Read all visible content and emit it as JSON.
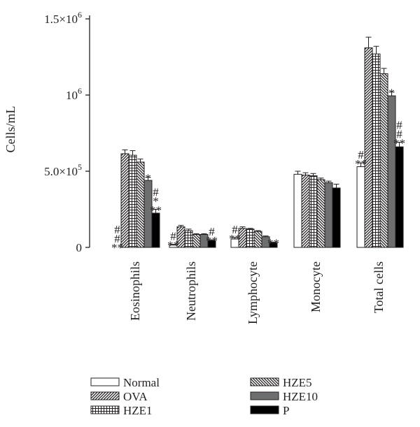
{
  "chart_data": {
    "type": "bar",
    "ylabel": "Cells/mL",
    "ylim": [
      0,
      1500000
    ],
    "categories": [
      "Eosinophils",
      "Neutrophils",
      "Lymphocyte",
      "Monocyte",
      "Total cells"
    ],
    "y_ticks": [
      {
        "value": 0,
        "parts": [
          {
            "t": "0"
          }
        ]
      },
      {
        "value": 500000,
        "parts": [
          {
            "t": "5.0×10"
          },
          {
            "t": "5",
            "sup": true
          }
        ]
      },
      {
        "value": 1000000,
        "parts": [
          {
            "t": "10"
          },
          {
            "t": "6",
            "sup": true
          }
        ]
      },
      {
        "value": 1500000,
        "parts": [
          {
            "t": "1.5×10"
          },
          {
            "t": "6",
            "sup": true
          }
        ]
      }
    ],
    "series": [
      {
        "name": "Normal",
        "pattern": "white",
        "values": [
          0,
          15000,
          55000,
          480000,
          530000
        ],
        "errors": [
          0,
          5000,
          10000,
          20000,
          25000
        ],
        "marks": [
          [
            "**",
            "#",
            "#"
          ],
          [
            "**",
            "#"
          ],
          [
            "**",
            "#"
          ],
          [],
          [
            "**",
            "#"
          ]
        ]
      },
      {
        "name": "OVA",
        "pattern": "diag",
        "values": [
          615000,
          135000,
          125000,
          475000,
          1310000
        ],
        "errors": [
          25000,
          10000,
          10000,
          15000,
          70000
        ],
        "marks": [
          [],
          [],
          [],
          [],
          []
        ]
      },
      {
        "name": "HZE1",
        "pattern": "grid",
        "values": [
          605000,
          110000,
          120000,
          470000,
          1270000
        ],
        "errors": [
          30000,
          10000,
          5000,
          15000,
          50000
        ],
        "marks": [
          [],
          [],
          [],
          [],
          []
        ]
      },
      {
        "name": "HZE5",
        "pattern": "rdiag",
        "values": [
          560000,
          85000,
          105000,
          445000,
          1140000
        ],
        "errors": [
          20000,
          5000,
          5000,
          10000,
          35000
        ],
        "marks": [
          [],
          [],
          [],
          [],
          []
        ]
      },
      {
        "name": "HZE10",
        "pattern": "gray",
        "values": [
          440000,
          85000,
          70000,
          425000,
          995000
        ],
        "errors": [
          20000,
          5000,
          5000,
          10000,
          25000
        ],
        "marks": [
          [
            "*"
          ],
          [],
          [],
          [],
          [
            "*"
          ]
        ]
      },
      {
        "name": "P",
        "pattern": "black",
        "values": [
          225000,
          45000,
          30000,
          390000,
          660000
        ],
        "errors": [
          25000,
          5000,
          5000,
          25000,
          30000
        ],
        "marks": [
          [
            "**",
            "*",
            "#"
          ],
          [
            "**",
            "#"
          ],
          [
            "**"
          ],
          [],
          [
            "**",
            "#",
            "#"
          ]
        ]
      }
    ],
    "legend_position": "bottom",
    "grid": false
  }
}
